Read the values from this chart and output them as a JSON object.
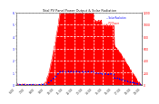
{
  "title": "Total PV Panel Power Output & Solar Radiation",
  "bg_color": "#ffffff",
  "plot_bg_color": "#ffffff",
  "grid_color": "#aaaaaa",
  "x_labels": [
    "6:00",
    "7:00",
    "8:00",
    "9:00",
    "10:00",
    "11:00",
    "12:00",
    "13:00",
    "14:00",
    "15:00",
    "16:00",
    "17:00",
    "18:00",
    "19:00"
  ],
  "n_points": 300,
  "pv_color": "#ff0000",
  "radiation_color": "#0000ff",
  "title_color": "#222222",
  "right_yticks": [
    "0",
    "200",
    "400",
    "600",
    "800",
    "1000",
    "1200"
  ],
  "right_yvals": [
    0,
    200,
    400,
    600,
    800,
    1000,
    1200
  ],
  "left_yticks": [
    "0",
    "1",
    "2",
    "3",
    "4",
    "5",
    "6"
  ],
  "left_yvals": [
    0,
    1,
    2,
    3,
    4,
    5,
    6
  ],
  "pv_max": 1200,
  "rad_max": 6,
  "ylabel_right_color": "#ff0000",
  "ylabel_left_color": "#0000ff",
  "tick_color": "#333333"
}
